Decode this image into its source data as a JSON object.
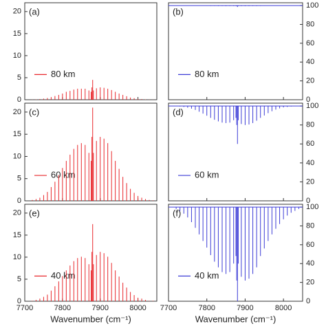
{
  "chart_data": [
    {
      "type": "spectrum",
      "label": "(a)",
      "legend": "80 km",
      "color": "#e8262a",
      "direction": "up",
      "yaxis_side": "left",
      "x": [
        7720,
        7730,
        7740,
        7750,
        7760,
        7770,
        7780,
        7790,
        7800,
        7810,
        7820,
        7830,
        7840,
        7850,
        7860,
        7870,
        7876,
        7878,
        7880,
        7882,
        7890,
        7900,
        7910,
        7920,
        7930,
        7940,
        7950,
        7960,
        7970,
        7980,
        7990,
        8000,
        8010,
        8020,
        8030,
        8040
      ],
      "values": [
        0.04,
        0.07,
        0.14,
        0.25,
        0.39,
        0.6,
        0.84,
        1.1,
        1.4,
        1.8,
        2.0,
        2.3,
        2.5,
        2.5,
        2.5,
        2.1,
        1.8,
        2.8,
        4.5,
        2.1,
        2.6,
        2.8,
        2.7,
        2.5,
        2.2,
        1.8,
        1.4,
        1.1,
        0.8,
        0.5,
        0.35,
        0.2,
        0.14,
        0.07,
        0.04,
        0.02
      ],
      "xlim": [
        7700,
        8050
      ],
      "xticks": [
        7700,
        7800,
        7900,
        8000
      ],
      "ylim": [
        0,
        22
      ],
      "yticks": [
        0,
        5,
        10,
        15,
        20
      ]
    },
    {
      "type": "spectrum",
      "label": "(b)",
      "legend": "80 km",
      "color": "#3b3bd6",
      "direction": "down",
      "yaxis_side": "right",
      "x": [
        7720,
        7730,
        7740,
        7750,
        7760,
        7770,
        7780,
        7790,
        7800,
        7810,
        7820,
        7830,
        7840,
        7850,
        7860,
        7870,
        7876,
        7878,
        7880,
        7882,
        7890,
        7900,
        7910,
        7920,
        7930,
        7940,
        7950,
        7960,
        7970,
        7980,
        7990,
        8000,
        8010,
        8020,
        8030,
        8040
      ],
      "values": [
        100,
        100,
        100,
        99.9,
        99.9,
        99.9,
        99.8,
        99.8,
        99.7,
        99.6,
        99.6,
        99.5,
        99.5,
        99.4,
        99.5,
        99.5,
        99.6,
        99.4,
        98.5,
        99.5,
        99.4,
        99.4,
        99.4,
        99.5,
        99.5,
        99.6,
        99.7,
        99.8,
        99.8,
        99.9,
        99.9,
        100,
        100,
        100,
        100,
        100
      ],
      "xlim": [
        7700,
        8050
      ],
      "xticks": [
        7700,
        7800,
        7900,
        8000
      ],
      "ylim": [
        0,
        103
      ],
      "yticks": [
        0,
        20,
        40,
        60,
        80,
        100
      ]
    },
    {
      "type": "spectrum",
      "label": "(c)",
      "legend": "60 km",
      "color": "#e8262a",
      "direction": "up",
      "yaxis_side": "left",
      "x": [
        7720,
        7730,
        7740,
        7750,
        7760,
        7770,
        7780,
        7790,
        7800,
        7810,
        7820,
        7830,
        7840,
        7850,
        7860,
        7870,
        7876,
        7878,
        7880,
        7882,
        7890,
        7900,
        7910,
        7920,
        7930,
        7940,
        7950,
        7960,
        7970,
        7980,
        7990,
        8000,
        8010,
        8020,
        8030,
        8040
      ],
      "values": [
        0.2,
        0.4,
        0.7,
        1.3,
        2,
        3.1,
        4.3,
        5.8,
        7.4,
        9,
        10.4,
        11.7,
        12.6,
        13,
        12.6,
        10.8,
        9,
        14.4,
        21,
        10.8,
        13.5,
        14.4,
        14,
        13,
        11.2,
        9,
        7.2,
        5.4,
        4,
        2.7,
        1.8,
        1.1,
        0.7,
        0.4,
        0.2,
        0.1
      ],
      "xlim": [
        7700,
        8050
      ],
      "xticks": [
        7700,
        7800,
        7900,
        8000
      ],
      "ylim": [
        0,
        22
      ],
      "yticks": [
        0,
        5,
        10,
        15,
        20
      ]
    },
    {
      "type": "spectrum",
      "label": "(d)",
      "legend": "60 km",
      "color": "#3b3bd6",
      "direction": "down",
      "yaxis_side": "right",
      "x": [
        7720,
        7730,
        7740,
        7750,
        7760,
        7770,
        7780,
        7790,
        7800,
        7810,
        7820,
        7830,
        7840,
        7850,
        7860,
        7870,
        7876,
        7878,
        7880,
        7882,
        7890,
        7900,
        7910,
        7920,
        7930,
        7940,
        7950,
        7960,
        7970,
        7980,
        7990,
        8000,
        8010,
        8020,
        8030,
        8040
      ],
      "values": [
        99.8,
        99.5,
        99,
        98.2,
        97.2,
        95.8,
        94,
        92,
        89.8,
        87.5,
        85.5,
        83.8,
        82.5,
        82,
        82.5,
        85,
        87.5,
        80,
        60,
        85,
        81,
        80,
        80.5,
        82,
        84.5,
        87.5,
        90,
        92.5,
        94.5,
        96.2,
        97.5,
        98.5,
        99,
        99.5,
        99.8,
        99.9
      ],
      "xlim": [
        7700,
        8050
      ],
      "xticks": [
        7700,
        7800,
        7900,
        8000
      ],
      "ylim": [
        0,
        103
      ],
      "yticks": [
        0,
        20,
        40,
        60,
        80,
        100
      ]
    },
    {
      "type": "spectrum",
      "label": "(e)",
      "legend": "40 km",
      "color": "#e8262a",
      "direction": "up",
      "yaxis_side": "left",
      "xlabel": "Wavenumber (cm⁻¹)",
      "x": [
        7720,
        7730,
        7740,
        7750,
        7760,
        7770,
        7780,
        7790,
        7800,
        7810,
        7820,
        7830,
        7840,
        7850,
        7860,
        7870,
        7876,
        7878,
        7880,
        7882,
        7890,
        7900,
        7910,
        7920,
        7930,
        7940,
        7950,
        7960,
        7970,
        7980,
        7990,
        8000,
        8010,
        8020,
        8030,
        8040
      ],
      "values": [
        0.1,
        0.3,
        0.6,
        1,
        1.5,
        2.4,
        3.4,
        4.5,
        5.7,
        7,
        8.1,
        9.1,
        9.8,
        10.1,
        9.8,
        8.4,
        7,
        11.2,
        17.5,
        8.4,
        10.5,
        11.2,
        10.9,
        10.1,
        8.7,
        7,
        5.6,
        4.2,
        3.1,
        2.1,
        1.4,
        0.8,
        0.6,
        0.3,
        0.1,
        0.1
      ],
      "xlim": [
        7700,
        8050
      ],
      "xticks": [
        7700,
        7800,
        7900,
        8000
      ],
      "ylim": [
        0,
        22
      ],
      "yticks": [
        0,
        5,
        10,
        15,
        20
      ]
    },
    {
      "type": "spectrum",
      "label": "(f)",
      "legend": "40 km",
      "color": "#3b3bd6",
      "direction": "down",
      "yaxis_side": "right",
      "xlabel": "Wavenumber (cm⁻¹)",
      "x": [
        7720,
        7730,
        7740,
        7750,
        7760,
        7770,
        7780,
        7790,
        7800,
        7810,
        7820,
        7830,
        7840,
        7850,
        7860,
        7870,
        7876,
        7878,
        7880,
        7882,
        7890,
        7900,
        7910,
        7920,
        7930,
        7940,
        7950,
        7960,
        7970,
        7980,
        7990,
        8000,
        8010,
        8020,
        8030,
        8040
      ],
      "values": [
        98,
        96,
        93,
        89,
        84,
        78,
        71,
        64,
        57,
        49,
        42,
        36,
        31,
        29,
        31,
        40,
        48,
        22,
        0,
        40,
        26,
        22,
        24,
        29,
        36,
        48,
        56,
        64,
        71,
        77,
        82,
        87,
        91,
        94,
        96,
        98
      ],
      "xlim": [
        7700,
        8050
      ],
      "xticks": [
        7700,
        7800,
        7900,
        8000
      ],
      "ylim": [
        0,
        103
      ],
      "yticks": [
        0,
        20,
        40,
        60,
        80,
        100
      ]
    }
  ]
}
